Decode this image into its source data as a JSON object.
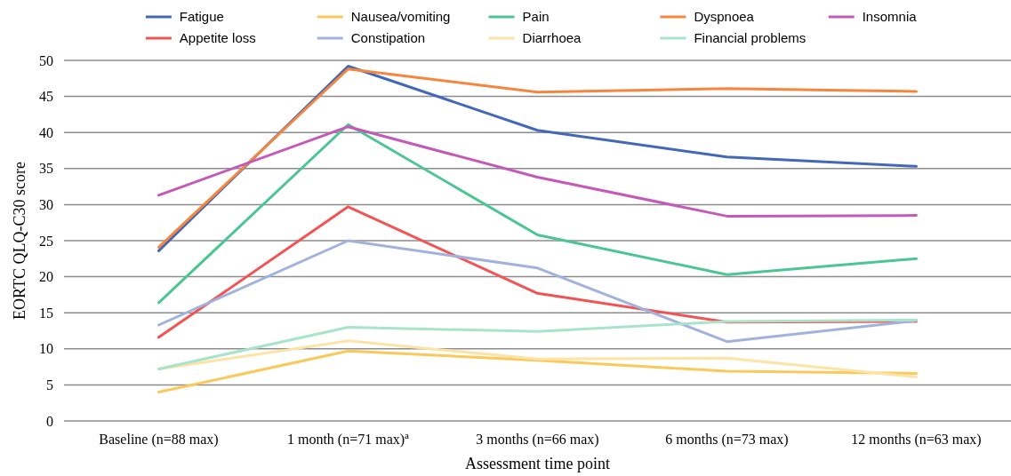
{
  "chart_data": {
    "type": "line",
    "xlabel": "Assessment time point",
    "ylabel": "EORTC QLQ-C30 score",
    "categories": [
      "Baseline (n=88 max)",
      "1 month (n=71 max)$^{a}$",
      "3 months (n=66 max)",
      "6 months (n=73 max)",
      "12 months (n=63 max)"
    ],
    "ylim": [
      0,
      50
    ],
    "yticks": [
      0,
      5,
      10,
      15,
      20,
      25,
      30,
      35,
      40,
      45,
      50
    ],
    "grid": "y",
    "legend": "top",
    "marker": "none",
    "line_style": "solid",
    "series": [
      {
        "name": "Fatigue",
        "color": "#4468b8",
        "values": [
          23.6,
          49.2,
          40.3,
          36.6,
          35.3
        ]
      },
      {
        "name": "Nausea/vomiting",
        "color": "#fbc85a",
        "values": [
          4.0,
          9.7,
          8.4,
          6.9,
          6.6
        ]
      },
      {
        "name": "Pain",
        "color": "#4cc594",
        "values": [
          16.4,
          41.1,
          25.8,
          20.3,
          22.5
        ]
      },
      {
        "name": "Dyspnoea",
        "color": "#f6863e",
        "values": [
          24.1,
          48.8,
          45.6,
          46.1,
          45.7
        ]
      },
      {
        "name": "Insomnia",
        "color": "#c459b8",
        "values": [
          31.3,
          40.8,
          33.8,
          28.4,
          28.5
        ]
      },
      {
        "name": "Appetite loss",
        "color": "#f25455",
        "values": [
          11.6,
          29.7,
          17.7,
          13.7,
          13.8
        ]
      },
      {
        "name": "Constipation",
        "color": "#a2b2de",
        "values": [
          13.3,
          25.0,
          21.2,
          11.0,
          13.9
        ]
      },
      {
        "name": "Diarrhoea",
        "color": "#fde3a4",
        "values": [
          7.2,
          11.1,
          8.6,
          8.7,
          6.1
        ]
      },
      {
        "name": "Financial problems",
        "color": "#a8e3cb",
        "values": [
          7.2,
          13.0,
          12.4,
          13.8,
          14.0
        ]
      }
    ]
  }
}
